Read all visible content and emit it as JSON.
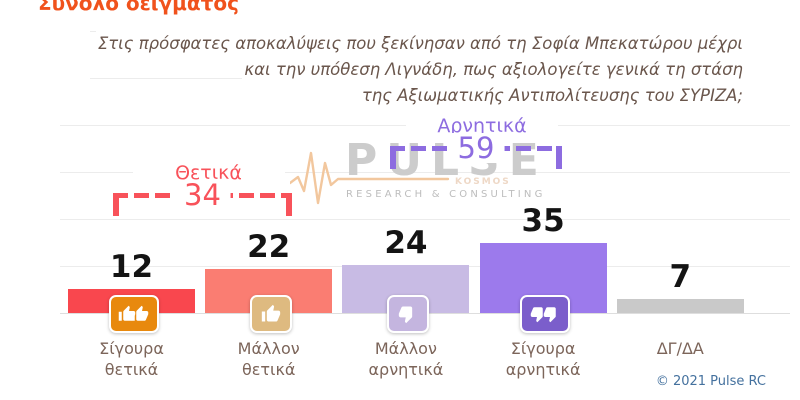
{
  "header": {
    "title": "Σύνολο δείγματος"
  },
  "question": {
    "lines": [
      "Στις πρόσφατες αποκαλύψεις που ξεκίνησαν από τη Σοφία Μπεκατώρου μέχρι",
      "και την υπόθεση Λιγνάδη, πως αξιολογείτε γενικά τη στάση",
      "της Αξιωματικής Αντιπολίτευσης του ΣΥΡΙΖΑ;"
    ]
  },
  "watermark": {
    "brand": "PULSE",
    "subtext": "KOSMOS",
    "tagline": "RESEARCH & CONSULTING"
  },
  "chart_data": {
    "type": "bar",
    "title": "Στις πρόσφατες αποκαλύψεις που ξεκίνησαν από τη Σοφία Μπεκατώρου μέχρι και την υπόθεση Λιγνάδη, πως αξιολογείτε γενικά τη στάση της Αξιωματικής Αντιπολίτευσης του ΣΥΡΙΖΑ;",
    "categories": [
      "Σίγουρα θετικά",
      "Μάλλον θετικά",
      "Μάλλον αρνητικά",
      "Σίγουρα αρνητικά",
      "ΔΓ/ΔΑ"
    ],
    "category_lines": [
      [
        "Σίγουρα",
        "θετικά"
      ],
      [
        "Μάλλον",
        "θετικά"
      ],
      [
        "Μάλλον",
        "αρνητικά"
      ],
      [
        "Σίγουρα",
        "αρνητικά"
      ],
      [
        "ΔΓ/ΔΑ"
      ]
    ],
    "values": [
      12,
      22,
      24,
      35,
      7
    ],
    "bar_colors": [
      "#f9474e",
      "#fa7d72",
      "#c8bbe4",
      "#9c7aec",
      "#c9c9c9"
    ],
    "icons": [
      "thumbs-up-double",
      "thumb-up",
      "thumb-down",
      "thumbs-down-double",
      null
    ],
    "icon_colors": [
      "#e8890e",
      "#deba80",
      "#c4b5df",
      "#7b5ecb",
      null
    ],
    "groups": [
      {
        "label": "Θετικά",
        "value": 34,
        "color": "#f8525a",
        "from": 0,
        "to": 1
      },
      {
        "label": "Αρνητικά",
        "value": 59,
        "color": "#8d6ce0",
        "from": 2,
        "to": 3
      }
    ],
    "ylim": [
      0,
      100
    ],
    "grid": "horizontal gridlines every 25, no visible y-axis",
    "legend": "none"
  },
  "footer": {
    "copyright": "© 2021 Pulse RC"
  }
}
